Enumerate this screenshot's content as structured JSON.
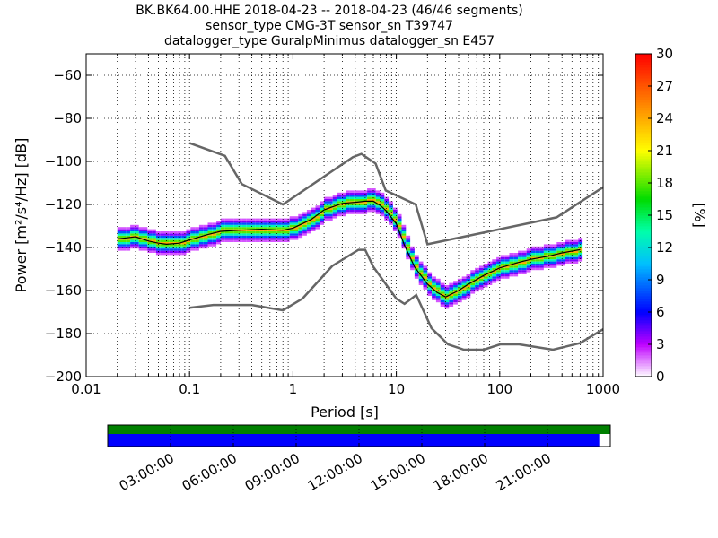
{
  "chart_data": {
    "type": "heatmap",
    "title_lines": [
      "BK.BK64.00.HHE   2018-04-23 -- 2018-04-23  (46/46 segments)",
      "sensor_type CMG-3T sensor_sn T39747",
      "datalogger_type GuralpMinimus datalogger_sn E457"
    ],
    "xlabel": "Period [s]",
    "ylabel": "Power [m²/s⁴/Hz] [dB]",
    "xscale": "log",
    "xlim": [
      0.01,
      1000
    ],
    "ylim": [
      -200,
      -50
    ],
    "x_ticks": [
      0.01,
      0.1,
      1,
      10,
      100,
      1000
    ],
    "x_tick_labels": [
      "0.01",
      "0.1",
      "1",
      "10",
      "100",
      "1000"
    ],
    "y_ticks": [
      -200,
      -180,
      -160,
      -140,
      -120,
      -100,
      -80,
      -60
    ],
    "y_tick_labels": [
      "−200",
      "−180",
      "−160",
      "−140",
      "−120",
      "−100",
      "−80",
      "−60"
    ],
    "colorbar": {
      "label": "[%]",
      "range": [
        0,
        30
      ],
      "ticks": [
        0,
        3,
        6,
        9,
        12,
        15,
        18,
        21,
        24,
        27,
        30
      ],
      "tick_labels": [
        "0",
        "3",
        "6",
        "9",
        "12",
        "15",
        "18",
        "21",
        "24",
        "27",
        "30"
      ],
      "colormap": "pqlx"
    },
    "noise_models": [
      {
        "name": "NHNM",
        "x": [
          0.1,
          0.22,
          0.32,
          0.8,
          3.8,
          4.6,
          6.3,
          7.9,
          15.4,
          20,
          354.8,
          1000
        ],
        "y": [
          -91.5,
          -97.4,
          -110.5,
          -120,
          -98,
          -96.5,
          -101,
          -113.5,
          -120,
          -138.5,
          -126,
          -112
        ]
      },
      {
        "name": "NLNM",
        "x": [
          0.1,
          0.17,
          0.4,
          0.8,
          1.24,
          2.4,
          4.3,
          5,
          6,
          10,
          12,
          15.6,
          21.9,
          31.6,
          45,
          70,
          101,
          154,
          328,
          600,
          1000
        ],
        "y": [
          -168,
          -166.7,
          -166.7,
          -169.2,
          -163.7,
          -148.6,
          -141.1,
          -141.1,
          -149,
          -163.8,
          -166.2,
          -162.1,
          -177.5,
          -185,
          -187.5,
          -187.5,
          -185,
          -185,
          -187.5,
          -184.4,
          -178
        ]
      }
    ],
    "mode_curve": {
      "x": [
        0.02,
        0.025,
        0.03,
        0.04,
        0.05,
        0.06,
        0.08,
        0.1,
        0.15,
        0.2,
        0.3,
        0.5,
        0.8,
        1,
        1.5,
        2,
        3,
        4,
        5,
        6,
        7,
        8,
        10,
        12,
        15,
        20,
        25,
        30,
        40,
        50,
        70,
        100,
        150,
        200,
        300,
        400,
        600
      ],
      "y": [
        -136,
        -135.5,
        -135,
        -137,
        -138,
        -138.5,
        -138,
        -136.5,
        -134,
        -132.5,
        -132,
        -131.5,
        -132,
        -131,
        -127,
        -122.5,
        -119.5,
        -119,
        -118.5,
        -118.5,
        -120.5,
        -123,
        -129,
        -139,
        -149,
        -157,
        -161,
        -163,
        -160,
        -157,
        -153,
        -149.5,
        -147,
        -145.5,
        -144,
        -142.5,
        -141
      ]
    },
    "percent_by_offset_db": {
      "0": 24,
      "1": 18,
      "-1": 18,
      "2": 13,
      "-2": 13,
      "3": 8,
      "-3": 8,
      "4": 4,
      "-4": 4,
      "5": 2,
      "-5": 2
    },
    "coverage": {
      "time_ticks": [
        "03:00:00",
        "06:00:00",
        "09:00:00",
        "12:00:00",
        "15:00:00",
        "18:00:00",
        "21:00:00"
      ],
      "time_tick_fractions": [
        0.125,
        0.25,
        0.375,
        0.5,
        0.625,
        0.75,
        0.875
      ],
      "data_fraction": 0.978,
      "colors": {
        "data": "#008000",
        "used": "#0000ff"
      }
    }
  }
}
